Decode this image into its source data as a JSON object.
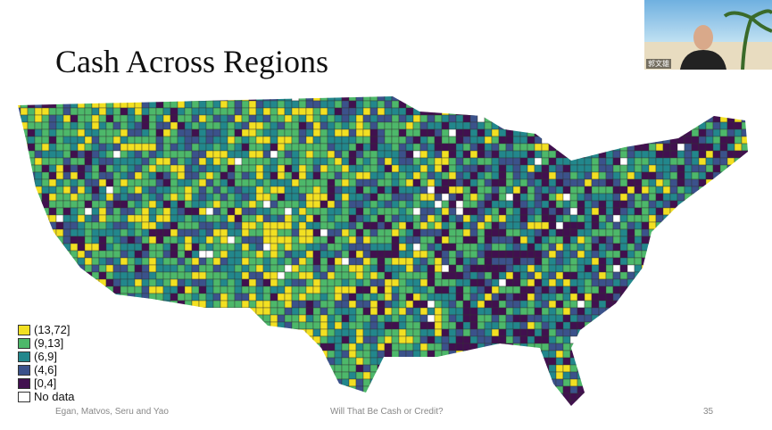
{
  "title": "Cash Across Regions",
  "legend": [
    {
      "label": "(13,72]",
      "color": "#f2e022"
    },
    {
      "label": "(9,13]",
      "color": "#4db86a"
    },
    {
      "label": "(6,9]",
      "color": "#22878c"
    },
    {
      "label": "(4,6]",
      "color": "#3b528b"
    },
    {
      "label": "[0,4]",
      "color": "#41104f"
    },
    {
      "label": "No data",
      "color": "#ffffff"
    }
  ],
  "footer": {
    "authors": "Egan, Matvos, Seru and Yao",
    "paper": "Will That Be Cash or Credit?",
    "page": "35"
  },
  "presenter": "郭文雄"
}
